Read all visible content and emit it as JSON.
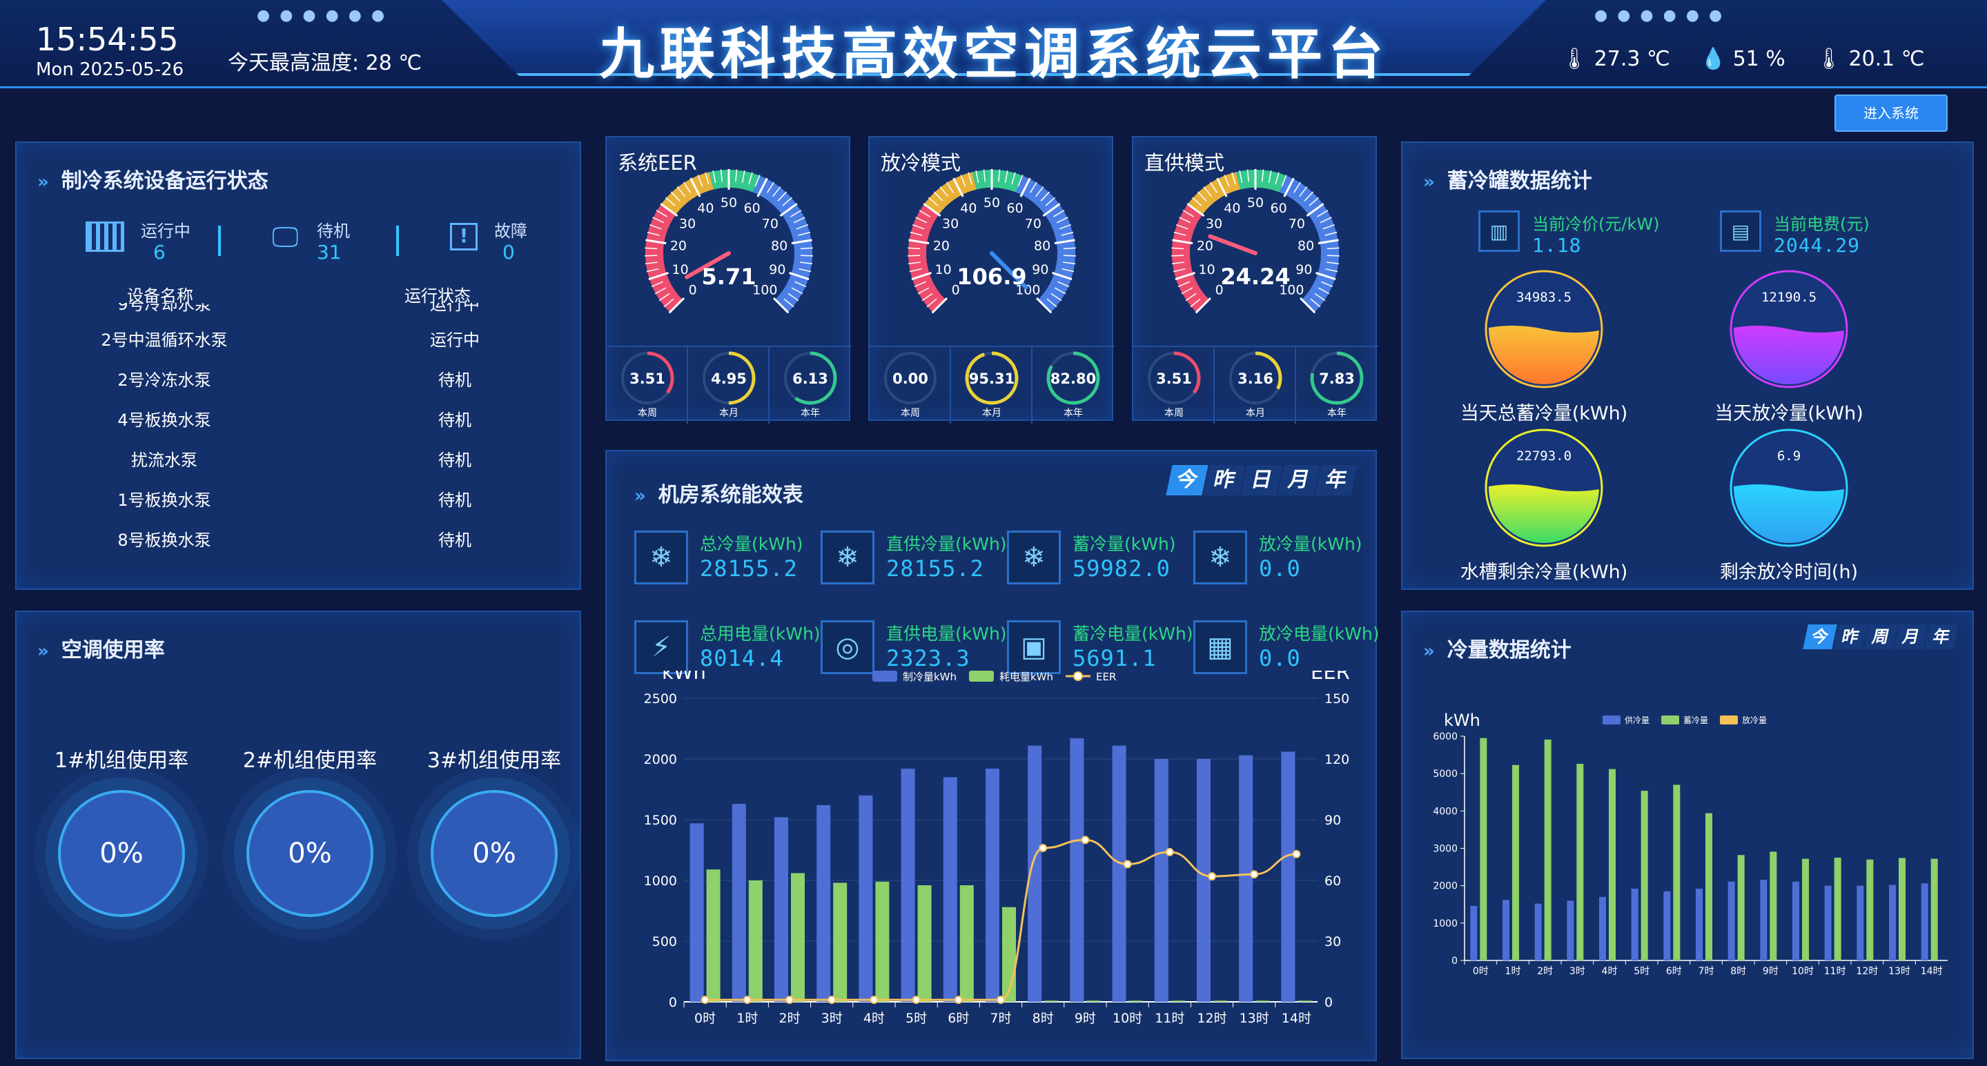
{
  "header": {
    "time": "15:54:55",
    "date": "Mon 2025-05-26",
    "max_temp": "今天最高温度: 28 ℃",
    "title": "九联科技高效空调系统云平台",
    "temperature": "27.3 ℃",
    "humidity": "51 %",
    "dewpoint": "20.1 ℃",
    "enter_button": "进入系统"
  },
  "equipment": {
    "title": "制冷系统设备运行状态",
    "running_label": "运行中",
    "running_count": "6",
    "standby_label": "待机",
    "standby_count": "31",
    "fault_label": "故障",
    "fault_count": "0",
    "col_name": "设备名称",
    "col_status": "运行状态",
    "cut_row": {
      "name": "9号冷却水泵",
      "status": "运行中"
    },
    "rows": [
      {
        "name": "2号中温循环水泵",
        "status": "运行中"
      },
      {
        "name": "2号冷冻水泵",
        "status": "待机"
      },
      {
        "name": "4号板换水泵",
        "status": "待机"
      },
      {
        "name": "扰流水泵",
        "status": "待机"
      },
      {
        "name": "1号板换水泵",
        "status": "待机"
      },
      {
        "name": "8号板换水泵",
        "status": "待机"
      }
    ]
  },
  "usage": {
    "title": "空调使用率",
    "units": [
      {
        "label": "1#机组使用率",
        "value": "0%"
      },
      {
        "label": "2#机组使用率",
        "value": "0%"
      },
      {
        "label": "3#机组使用率",
        "value": "0%"
      }
    ]
  },
  "gauges": [
    {
      "title": "系统EER",
      "value": "5.71",
      "value_num": 5.71,
      "subs": [
        {
          "value": "3.51",
          "label": "本周",
          "frac": 0.35
        },
        {
          "value": "4.95",
          "label": "本月",
          "frac": 0.5
        },
        {
          "value": "6.13",
          "label": "本年",
          "frac": 0.6
        }
      ]
    },
    {
      "title": "放冷模式",
      "value": "106.9",
      "value_num": 106.9,
      "subs": [
        {
          "value": "0.00",
          "label": "本周",
          "frac": 0
        },
        {
          "value": "95.31",
          "label": "本月",
          "frac": 0.95
        },
        {
          "value": "82.80",
          "label": "本年",
          "frac": 0.83
        }
      ]
    },
    {
      "title": "直供模式",
      "value": "24.24",
      "value_num": 24.24,
      "subs": [
        {
          "value": "3.51",
          "label": "本周",
          "frac": 0.35
        },
        {
          "value": "3.16",
          "label": "本月",
          "frac": 0.32
        },
        {
          "value": "7.83",
          "label": "本年",
          "frac": 0.78
        }
      ]
    }
  ],
  "gauge_scale": {
    "ticks": [
      "0",
      "10",
      "20",
      "30",
      "40",
      "50",
      "60",
      "70",
      "80",
      "90",
      "100"
    ],
    "min": 0,
    "max": 100,
    "colors": [
      "#ee4d6e",
      "#e8b23a",
      "#35c98e",
      "#4c7fe6"
    ]
  },
  "storage": {
    "title": "蓄冷罐数据统计",
    "price_label": "当前冷价(元/kW)",
    "price_value": "1.18",
    "fee_label": "当前电费(元)",
    "fee_value": "2044.29",
    "tanks": [
      {
        "value": "34983.5",
        "label": "当天总蓄冷量(kWh)",
        "fill": 0.5,
        "c1": "#f7c23a",
        "c2": "#ff6f2c"
      },
      {
        "value": "12190.5",
        "label": "当天放冷量(kWh)",
        "fill": 0.5,
        "c1": "#cf3cff",
        "c2": "#6d4cff"
      },
      {
        "value": "22793.0",
        "label": "水槽剩余冷量(kWh)",
        "fill": 0.5,
        "c1": "#eaf02b",
        "c2": "#26d86e"
      },
      {
        "value": "6.9",
        "label": "剩余放冷时间(h)",
        "fill": 0.5,
        "c1": "#2ad3ff",
        "c2": "#2f9cf0"
      }
    ]
  },
  "efficiency": {
    "title": "机房系统能效表",
    "tabs": [
      "今",
      "昨",
      "日",
      "月",
      "年"
    ],
    "metrics": [
      {
        "label": "总冷量(kWh)",
        "value": "28155.2",
        "icon": "snowflake-icon"
      },
      {
        "label": "直供冷量(kWh)",
        "value": "28155.2",
        "icon": "snowflake-icon"
      },
      {
        "label": "蓄冷量(kWh)",
        "value": "59982.0",
        "icon": "snowflake-icon"
      },
      {
        "label": "放冷量(kWh)",
        "value": "0.0",
        "icon": "snowflake-icon"
      },
      {
        "label": "总用电量(kWh)",
        "value": "8014.4",
        "icon": "lightning-icon"
      },
      {
        "label": "直供电量(kWh)",
        "value": "2323.3",
        "icon": "power-icon"
      },
      {
        "label": "蓄冷电量(kWh)",
        "value": "5691.1",
        "icon": "device-icon"
      },
      {
        "label": "放冷电量(kWh)",
        "value": "0.0",
        "icon": "grid-icon"
      }
    ]
  },
  "cold_stats": {
    "title": "冷量数据统计",
    "tabs": [
      "今",
      "昨",
      "周",
      "月",
      "年"
    ]
  },
  "chart_data": [
    {
      "type": "bar",
      "ylabel_left": "kWh",
      "ylabel_right": "EER",
      "categories": [
        "0时",
        "1时",
        "2时",
        "3时",
        "4时",
        "5时",
        "6时",
        "7时",
        "8时",
        "9时",
        "10时",
        "11时",
        "12时",
        "13时",
        "14时"
      ],
      "series": [
        {
          "name": "制冷量kWh",
          "type": "bar",
          "color": "#4f6fd6",
          "values": [
            1470,
            1630,
            1520,
            1620,
            1700,
            1920,
            1850,
            1920,
            2110,
            2170,
            2110,
            2000,
            2000,
            2030,
            2060
          ]
        },
        {
          "name": "耗电量kWh",
          "type": "bar",
          "color": "#8fd16a",
          "values": [
            1090,
            1000,
            1060,
            980,
            990,
            960,
            960,
            780,
            10,
            10,
            10,
            10,
            10,
            10,
            10
          ]
        },
        {
          "name": "EER",
          "type": "line",
          "axis": "right",
          "color": "#f5c25a",
          "values": [
            1,
            1,
            1,
            1,
            1,
            1,
            1,
            1,
            76,
            80,
            68,
            74,
            62,
            63,
            73
          ]
        }
      ],
      "ylim_left": [
        0,
        2500
      ],
      "ylim_right": [
        0,
        150
      ],
      "yticks_left": [
        "0",
        "500",
        "1000",
        "1500",
        "2000",
        "2500"
      ],
      "yticks_right": [
        "0",
        "30",
        "60",
        "90",
        "120",
        "150"
      ]
    },
    {
      "type": "bar",
      "ylabel": "kWh",
      "categories": [
        "0时",
        "1时",
        "2时",
        "3时",
        "4时",
        "5时",
        "6时",
        "7时",
        "8时",
        "9时",
        "10时",
        "11时",
        "12时",
        "13时",
        "14时"
      ],
      "series": [
        {
          "name": "供冷量",
          "color": "#4f6fd6",
          "values": [
            1460,
            1620,
            1520,
            1600,
            1700,
            1920,
            1850,
            1920,
            2110,
            2160,
            2110,
            2000,
            2000,
            2020,
            2060
          ]
        },
        {
          "name": "蓄冷量",
          "color": "#8fd16a",
          "values": [
            5950,
            5230,
            5910,
            5260,
            5120,
            4540,
            4700,
            3940,
            2820,
            2910,
            2720,
            2750,
            2700,
            2740,
            2720
          ]
        },
        {
          "name": "放冷量",
          "color": "#f5c25a",
          "values": [
            0,
            0,
            0,
            0,
            0,
            0,
            0,
            0,
            0,
            0,
            0,
            0,
            0,
            0,
            0
          ]
        }
      ],
      "ylim": [
        0,
        6000
      ],
      "yticks": [
        "0",
        "1000",
        "2000",
        "3000",
        "4000",
        "5000",
        "6000"
      ]
    }
  ]
}
